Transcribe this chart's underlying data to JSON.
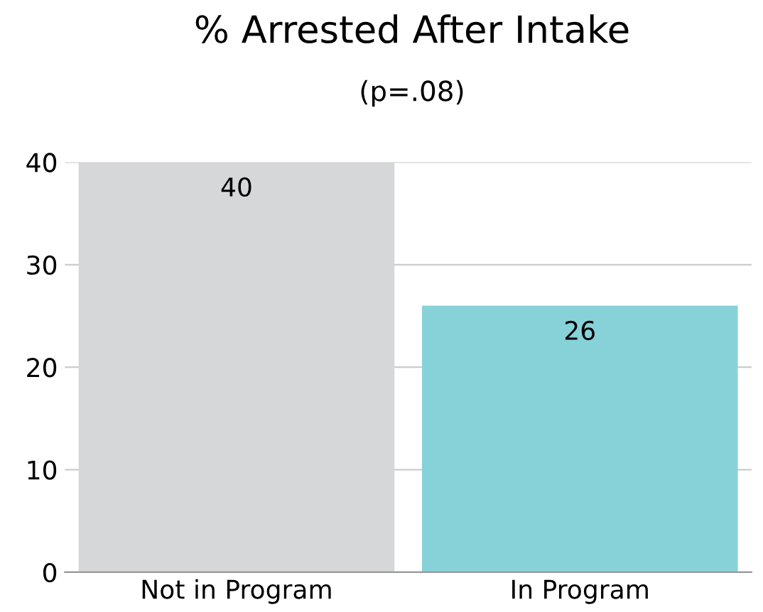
{
  "chart_data": {
    "type": "bar",
    "title": "% Arrested After Intake",
    "subtitle": "(p=.08)",
    "categories": [
      "Not in Program",
      "In Program"
    ],
    "values": [
      40,
      26
    ],
    "colors": [
      "#d6d7d9",
      "#87d2d9"
    ],
    "ylim": [
      0,
      40
    ],
    "yticks": [
      0,
      10,
      20,
      30,
      40
    ],
    "grid": "y",
    "data_labels": true,
    "legend": false
  }
}
